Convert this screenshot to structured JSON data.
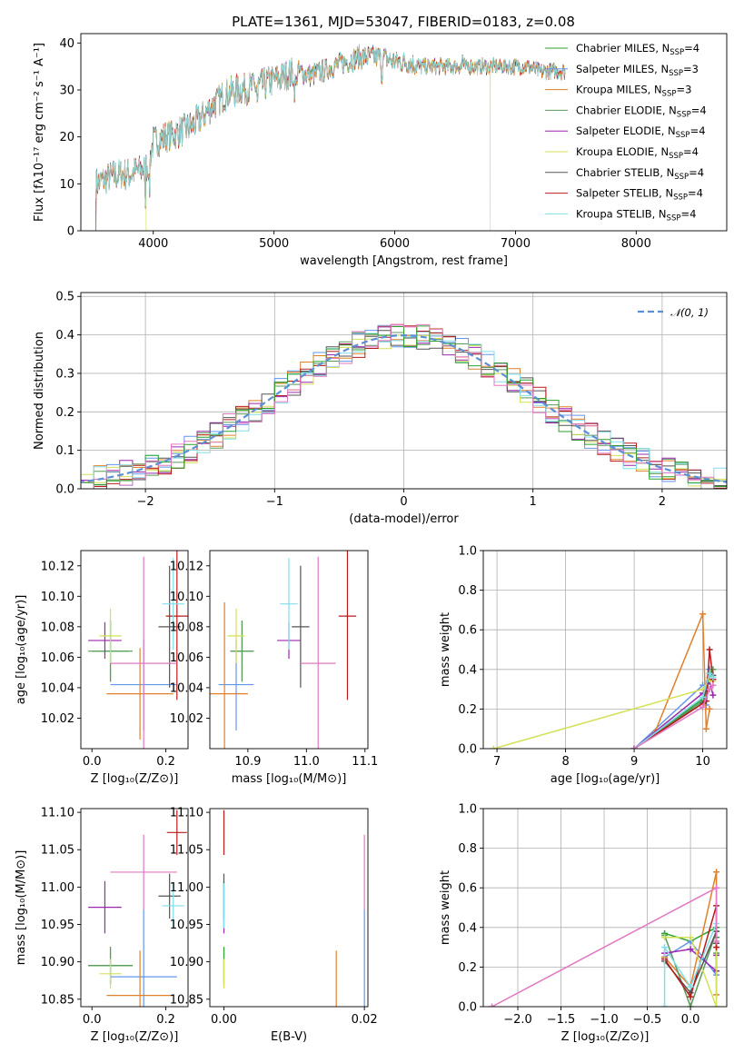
{
  "figure": {
    "title": "PLATE=1361, MJD=53047, FIBERID=0183, z=0.08"
  },
  "models": [
    {
      "label": "Chabrier MILES, N",
      "sub": "SSP",
      "tail": "=4",
      "color": "#2ca02c"
    },
    {
      "label": "Salpeter MILES, N",
      "sub": "SSP",
      "tail": "=3",
      "color": "#6495ed"
    },
    {
      "label": "Kroupa MILES, N",
      "sub": "SSP",
      "tail": "=3",
      "color": "#e0802a"
    },
    {
      "label": "Chabrier ELODIE, N",
      "sub": "SSP",
      "tail": "=4",
      "color": "#5a9a5a"
    },
    {
      "label": "Salpeter ELODIE, N",
      "sub": "SSP",
      "tail": "=4",
      "color": "#9c27b0"
    },
    {
      "label": "Kroupa ELODIE, N",
      "sub": "SSP",
      "tail": "=4",
      "color": "#d4e157"
    },
    {
      "label": "Chabrier STELIB, N",
      "sub": "SSP",
      "tail": "=4",
      "color": "#555555"
    },
    {
      "label": "Salpeter STELIB, N",
      "sub": "SSP",
      "tail": "=4",
      "color": "#b71c1c"
    },
    {
      "label": "Kroupa STELIB, N",
      "sub": "SSP",
      "tail": "=4",
      "color": "#80deea"
    }
  ],
  "chart_data": [
    {
      "id": "spectrum",
      "type": "line",
      "xlabel": "wavelength [Angstrom, rest frame]",
      "ylabel": "Flux [fλ10⁻¹⁷ erg cm⁻² s⁻¹ A⁻¹]",
      "xlim": [
        3400,
        8750
      ],
      "ylim": [
        0,
        42
      ],
      "xticks": [
        4000,
        5000,
        6000,
        7000,
        8000
      ],
      "yticks": [
        0,
        10,
        20,
        30,
        40
      ],
      "grid": false,
      "legend": "top-right",
      "continuum": {
        "x": [
          3520,
          3600,
          3700,
          3800,
          3900,
          3960,
          4000,
          4100,
          4200,
          4300,
          4400,
          4500,
          4600,
          4700,
          4800,
          4900,
          5000,
          5100,
          5200,
          5300,
          5400,
          5500,
          5600,
          5700,
          5800,
          5900,
          6000,
          6100,
          6200,
          6300,
          6400,
          6500,
          6600,
          6700,
          6800,
          6900,
          7000,
          7100,
          7200,
          7300,
          7400
        ],
        "y": [
          10,
          11,
          12,
          12,
          13,
          14,
          19,
          20,
          21,
          22,
          24,
          27,
          29,
          30,
          30.5,
          31,
          32,
          33,
          34,
          33,
          34,
          35,
          36,
          37,
          37,
          37,
          36,
          36,
          35,
          35,
          35,
          35,
          35,
          35,
          35,
          35,
          35,
          35,
          34,
          34,
          34
        ]
      },
      "drops": [
        {
          "x": 3525,
          "y": 0,
          "series": "Salpeter STELIB"
        },
        {
          "x": 3940,
          "y": 0,
          "series": "Kroupa ELODIE"
        },
        {
          "x": 6790,
          "y": 0,
          "series": "Kroupa ELODIE"
        },
        {
          "x": 7420,
          "y": 0,
          "series": "Kroupa MILES"
        }
      ]
    },
    {
      "id": "residuals",
      "type": "histogram",
      "xlabel": "(data-model)/error",
      "ylabel": "Normed distribution",
      "xlim": [
        -2.5,
        2.5
      ],
      "ylim": [
        0,
        0.51
      ],
      "xticks": [
        -2,
        -1,
        0,
        1,
        2
      ],
      "yticks": [
        0.0,
        0.1,
        0.2,
        0.3,
        0.4,
        0.5
      ],
      "grid": true,
      "legend": "top-right",
      "reference_label": "𝒩(0, 1)",
      "bin_width": 0.1
    },
    {
      "id": "age-vs-Z",
      "type": "scatter",
      "xlabel": "Z [log₁₀(Z/Z⊙)]",
      "ylabel": "age  [log₁₀(age/yr)]",
      "xlim": [
        -0.03,
        0.26
      ],
      "ylim": [
        10.0,
        10.13
      ],
      "xticks": [
        0.0,
        0.2
      ],
      "yticks": [
        10.02,
        10.04,
        10.06,
        10.08,
        10.1,
        10.12
      ],
      "points": [
        {
          "s": 0,
          "x": 0.05,
          "y": 10.064,
          "xe": 0.05,
          "ye": 0.02
        },
        {
          "s": 1,
          "x": 0.14,
          "y": 10.042,
          "xe": 0.09,
          "ye": 0.03
        },
        {
          "s": 2,
          "x": 0.13,
          "y": 10.036,
          "xe": 0.09,
          "ye": 0.03
        },
        {
          "s": 3,
          "x": 0.05,
          "y": 10.064,
          "xe": 0.06,
          "ye": 0.02
        },
        {
          "s": 4,
          "x": 0.035,
          "y": 10.071,
          "xe": 0.045,
          "ye": 0.012
        },
        {
          "s": 5,
          "x": 0.05,
          "y": 10.074,
          "xe": 0.03,
          "ye": 0.018
        },
        {
          "s": 6,
          "x": 0.21,
          "y": 10.08,
          "xe": 0.03,
          "ye": 0.04
        },
        {
          "s": 7,
          "x": 0.23,
          "y": 10.087,
          "xe": 0.03,
          "ye": 0.055
        },
        {
          "s": 8,
          "x": 0.22,
          "y": 10.095,
          "xe": 0.03,
          "ye": 0.03
        },
        {
          "s": 9,
          "x": 0.14,
          "y": 10.056,
          "xe": 0.09,
          "ye": 0.07,
          "color": "#e377c2"
        }
      ]
    },
    {
      "id": "age-vs-mass",
      "type": "scatter",
      "xlabel": "mass [log₁₀(M/M⊙)]",
      "ylabel": "",
      "xlim": [
        10.835,
        11.105
      ],
      "ylim": [
        10.0,
        10.13
      ],
      "xticks": [
        10.9,
        11.0,
        11.1
      ],
      "yticks": [
        10.02,
        10.04,
        10.06,
        10.08,
        10.1,
        10.12
      ],
      "points": [
        {
          "s": 0,
          "x": 10.89,
          "y": 10.064,
          "xe": 0.02,
          "ye": 0.02
        },
        {
          "s": 1,
          "x": 10.88,
          "y": 10.042,
          "xe": 0.03,
          "ye": 0.03
        },
        {
          "s": 2,
          "x": 10.86,
          "y": 10.036,
          "xe": 0.04,
          "ye": 0.06
        },
        {
          "s": 3,
          "x": 10.89,
          "y": 10.064,
          "xe": 0.02,
          "ye": 0.02
        },
        {
          "s": 4,
          "x": 10.97,
          "y": 10.071,
          "xe": 0.02,
          "ye": 0.012
        },
        {
          "s": 5,
          "x": 10.88,
          "y": 10.074,
          "xe": 0.015,
          "ye": 0.018
        },
        {
          "s": 6,
          "x": 10.99,
          "y": 10.08,
          "xe": 0.015,
          "ye": 0.04
        },
        {
          "s": 7,
          "x": 11.07,
          "y": 10.087,
          "xe": 0.015,
          "ye": 0.055
        },
        {
          "s": 8,
          "x": 10.97,
          "y": 10.095,
          "xe": 0.015,
          "ye": 0.03
        },
        {
          "s": 9,
          "x": 11.02,
          "y": 10.056,
          "xe": 0.03,
          "ye": 0.07,
          "color": "#e377c2"
        }
      ]
    },
    {
      "id": "weight-vs-age",
      "type": "line",
      "xlabel": "age  [log₁₀(age/yr)]",
      "ylabel": "mass weight",
      "xlim": [
        6.8,
        10.35
      ],
      "ylim": [
        0.0,
        1.0
      ],
      "xticks": [
        7,
        8,
        9,
        10
      ],
      "yticks": [
        0.0,
        0.2,
        0.4,
        0.6,
        0.8,
        1.0
      ],
      "grid": true,
      "series": [
        {
          "s": 0,
          "x": [
            9.0,
            10.0,
            10.1,
            10.15
          ],
          "y": [
            0.0,
            0.25,
            0.4,
            0.35
          ]
        },
        {
          "s": 1,
          "x": [
            9.0,
            10.0,
            10.05,
            10.1
          ],
          "y": [
            0.0,
            0.32,
            0.22,
            0.4
          ]
        },
        {
          "s": 2,
          "x": [
            9.3,
            10.0,
            10.05,
            10.1
          ],
          "y": [
            0.08,
            0.68,
            0.1,
            0.2
          ]
        },
        {
          "s": 3,
          "x": [
            9.0,
            10.0,
            10.1,
            10.15
          ],
          "y": [
            0.0,
            0.24,
            0.36,
            0.4
          ]
        },
        {
          "s": 4,
          "x": [
            9.0,
            10.0,
            10.1,
            10.15
          ],
          "y": [
            0.0,
            0.28,
            0.34,
            0.27
          ]
        },
        {
          "s": 5,
          "x": [
            6.95,
            10.0,
            10.1,
            10.15
          ],
          "y": [
            0.0,
            0.3,
            0.35,
            0.34
          ]
        },
        {
          "s": 6,
          "x": [
            9.0,
            10.0,
            10.1,
            10.15
          ],
          "y": [
            0.0,
            0.23,
            0.38,
            0.37
          ]
        },
        {
          "s": 7,
          "x": [
            9.0,
            10.05,
            10.1,
            10.15
          ],
          "y": [
            0.0,
            0.24,
            0.5,
            0.35
          ]
        },
        {
          "s": 8,
          "x": [
            9.0,
            10.0,
            10.1,
            10.15
          ],
          "y": [
            0.0,
            0.26,
            0.38,
            0.36
          ]
        },
        {
          "s": 9,
          "x": [
            9.0,
            10.0,
            10.1,
            10.15
          ],
          "y": [
            0.0,
            0.21,
            0.3,
            0.32
          ],
          "color": "#e377c2"
        }
      ]
    },
    {
      "id": "mass-vs-Z",
      "type": "scatter",
      "xlabel": "Z [log₁₀(Z/Z⊙)]",
      "ylabel": "mass [log₁₀(M/M⊙)]",
      "xlim": [
        -0.03,
        0.26
      ],
      "ylim": [
        10.84,
        11.105
      ],
      "xticks": [
        0.0,
        0.2
      ],
      "yticks": [
        10.85,
        10.9,
        10.95,
        11.0,
        11.05,
        11.1
      ],
      "points": [
        {
          "s": 0,
          "x": 0.05,
          "y": 10.895,
          "xe": 0.06,
          "ye": 0.025
        },
        {
          "s": 1,
          "x": 0.14,
          "y": 10.88,
          "xe": 0.09,
          "ye": 0.09
        },
        {
          "s": 2,
          "x": 0.13,
          "y": 10.855,
          "xe": 0.09,
          "ye": 0.06
        },
        {
          "s": 3,
          "x": 0.05,
          "y": 10.895,
          "xe": 0.06,
          "ye": 0.025
        },
        {
          "s": 4,
          "x": 0.035,
          "y": 10.973,
          "xe": 0.045,
          "ye": 0.035
        },
        {
          "s": 5,
          "x": 0.05,
          "y": 10.884,
          "xe": 0.03,
          "ye": 0.02
        },
        {
          "s": 6,
          "x": 0.21,
          "y": 10.988,
          "xe": 0.03,
          "ye": 0.03
        },
        {
          "s": 7,
          "x": 0.23,
          "y": 11.073,
          "xe": 0.027,
          "ye": 0.03
        },
        {
          "s": 8,
          "x": 0.22,
          "y": 10.975,
          "xe": 0.03,
          "ye": 0.03
        },
        {
          "s": 9,
          "x": 0.14,
          "y": 11.02,
          "xe": 0.09,
          "ye": 0.05,
          "color": "#e377c2"
        }
      ]
    },
    {
      "id": "mass-vs-ebv",
      "type": "scatter",
      "xlabel": "E(B-V)",
      "ylabel": "",
      "xlim": [
        -0.002,
        0.0205
      ],
      "ylim": [
        10.84,
        11.105
      ],
      "xticks": [
        0.0,
        0.02
      ],
      "yticks": [
        10.85,
        10.9,
        10.95,
        11.0,
        11.05,
        11.1
      ],
      "points": [
        {
          "s": 0,
          "x": 0.0,
          "y": 10.895,
          "xe": 0,
          "ye": 0.025
        },
        {
          "s": 1,
          "x": 0.02,
          "y": 10.88,
          "xe": 0,
          "ye": 0.09
        },
        {
          "s": 2,
          "x": 0.016,
          "y": 10.855,
          "xe": 0,
          "ye": 0.06
        },
        {
          "s": 4,
          "x": 0.0,
          "y": 10.973,
          "xe": 0,
          "ye": 0.035
        },
        {
          "s": 5,
          "x": 0.0,
          "y": 10.884,
          "xe": 0,
          "ye": 0.02
        },
        {
          "s": 6,
          "x": 0.0,
          "y": 10.988,
          "xe": 0,
          "ye": 0.03
        },
        {
          "s": 7,
          "x": 0.0,
          "y": 11.073,
          "xe": 0,
          "ye": 0.03
        },
        {
          "s": 8,
          "x": 0.0,
          "y": 10.975,
          "xe": 0,
          "ye": 0.03
        },
        {
          "s": 9,
          "x": 0.02,
          "y": 11.02,
          "xe": 0,
          "ye": 0.05,
          "color": "#e377c2"
        }
      ]
    },
    {
      "id": "weight-vs-Z",
      "type": "line",
      "xlabel": "Z [log₁₀(Z/Z⊙)]",
      "ylabel": "mass weight",
      "xlim": [
        -2.4,
        0.42
      ],
      "ylim": [
        0.0,
        1.0
      ],
      "xticks": [
        -2.0,
        -1.5,
        -1.0,
        -0.5,
        0.0
      ],
      "yticks": [
        0.0,
        0.2,
        0.4,
        0.6,
        0.8,
        1.0
      ],
      "grid": true,
      "series": [
        {
          "s": 0,
          "x": [
            -0.3,
            0.0,
            0.3,
            0.3
          ],
          "y": [
            0.37,
            0.33,
            0.4,
            0.35
          ]
        },
        {
          "s": 1,
          "x": [
            -0.3,
            0.0,
            0.3
          ],
          "y": [
            0.25,
            0.33,
            0.16
          ]
        },
        {
          "s": 2,
          "x": [
            -0.3,
            0.0,
            0.3,
            0.3
          ],
          "y": [
            0.25,
            0.1,
            0.68,
            0.06
          ]
        },
        {
          "s": 3,
          "x": [
            -0.3,
            0.0,
            0.3,
            0.3
          ],
          "y": [
            0.36,
            0.0,
            0.38,
            0.27
          ]
        },
        {
          "s": 4,
          "x": [
            -0.3,
            0.0,
            0.3,
            0.3
          ],
          "y": [
            0.27,
            0.29,
            0.18,
            0.26
          ]
        },
        {
          "s": 5,
          "x": [
            -0.3,
            0.0,
            0.3,
            0.3
          ],
          "y": [
            0.35,
            0.35,
            0.0,
            0.3
          ]
        },
        {
          "s": 6,
          "x": [
            -0.3,
            0.0,
            0.3,
            0.3
          ],
          "y": [
            0.23,
            0.07,
            0.38,
            0.32
          ]
        },
        {
          "s": 7,
          "x": [
            -0.3,
            0.0,
            0.3,
            0.3
          ],
          "y": [
            0.24,
            0.05,
            0.51,
            0.3
          ]
        },
        {
          "s": 8,
          "x": [
            -0.3,
            -0.3,
            0.0,
            0.3
          ],
          "y": [
            0.0,
            0.3,
            0.1,
            0.42
          ]
        },
        {
          "s": 9,
          "x": [
            -2.3,
            0.3,
            0.3
          ],
          "y": [
            0.0,
            0.6,
            0.33
          ],
          "color": "#e377c2"
        }
      ]
    }
  ]
}
